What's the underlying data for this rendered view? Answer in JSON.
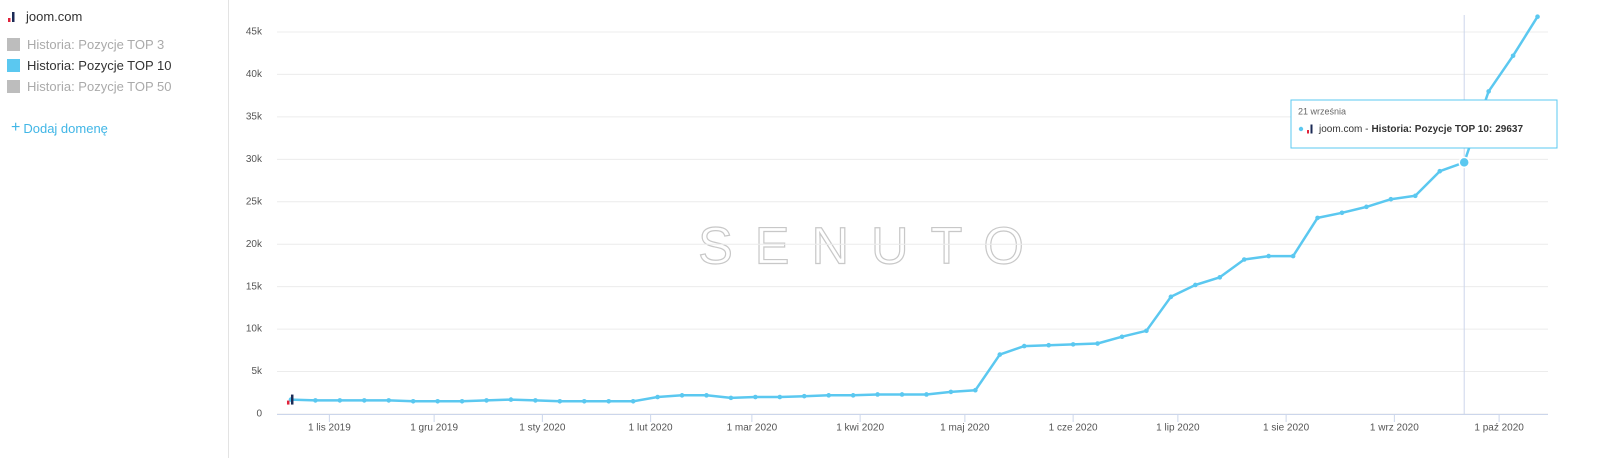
{
  "sidebar": {
    "domain": "joom.com",
    "legend": [
      {
        "name": "Historia: Pozycje TOP 3",
        "color": "#bdbdbd",
        "active": false
      },
      {
        "name": "Historia: Pozycje TOP 10",
        "color": "#5bc8f0",
        "active": true
      },
      {
        "name": "Historia: Pozycje TOP 50",
        "color": "#bdbdbd",
        "active": false
      }
    ],
    "add_domain": "Dodaj domenę"
  },
  "chart_data": {
    "type": "line",
    "watermark": "SENUTO",
    "x": [
      "2019-10-21",
      "2019-10-28",
      "2019-11-04",
      "2019-11-11",
      "2019-11-18",
      "2019-11-25",
      "2019-12-02",
      "2019-12-09",
      "2019-12-16",
      "2019-12-23",
      "2019-12-30",
      "2020-01-06",
      "2020-01-13",
      "2020-01-20",
      "2020-01-27",
      "2020-02-03",
      "2020-02-10",
      "2020-02-17",
      "2020-02-24",
      "2020-03-02",
      "2020-03-09",
      "2020-03-16",
      "2020-03-23",
      "2020-03-30",
      "2020-04-06",
      "2020-04-13",
      "2020-04-20",
      "2020-04-27",
      "2020-05-04",
      "2020-05-11",
      "2020-05-18",
      "2020-05-25",
      "2020-06-01",
      "2020-06-08",
      "2020-06-15",
      "2020-06-22",
      "2020-06-29",
      "2020-07-06",
      "2020-07-13",
      "2020-07-20",
      "2020-07-27",
      "2020-08-03",
      "2020-08-10",
      "2020-08-17",
      "2020-08-24",
      "2020-08-31",
      "2020-09-07",
      "2020-09-14",
      "2020-09-21",
      "2020-09-28",
      "2020-10-05",
      "2020-10-12"
    ],
    "series": [
      {
        "name": "Historia: Pozycje TOP 10",
        "color": "#5bc8f0",
        "values": [
          1700,
          1600,
          1600,
          1600,
          1600,
          1500,
          1500,
          1500,
          1600,
          1700,
          1600,
          1500,
          1500,
          1500,
          1500,
          2000,
          2200,
          2200,
          1900,
          2000,
          2000,
          2100,
          2200,
          2200,
          2300,
          2300,
          2300,
          2600,
          2800,
          7000,
          8000,
          8100,
          8200,
          8300,
          9100,
          9800,
          13800,
          15200,
          16100,
          18200,
          18600,
          18600,
          23100,
          23700,
          24400,
          25300,
          25700,
          28600,
          29637,
          38000,
          42200,
          46800
        ]
      }
    ],
    "xlim": [
      "2019-10-17",
      "2020-10-15"
    ],
    "xticks": [
      {
        "value": "2019-11-01",
        "label": "1 lis 2019"
      },
      {
        "value": "2019-12-01",
        "label": "1 gru 2019"
      },
      {
        "value": "2020-01-01",
        "label": "1 sty 2020"
      },
      {
        "value": "2020-02-01",
        "label": "1 lut 2020"
      },
      {
        "value": "2020-03-01",
        "label": "1 mar 2020"
      },
      {
        "value": "2020-04-01",
        "label": "1 kwi 2020"
      },
      {
        "value": "2020-05-01",
        "label": "1 maj 2020"
      },
      {
        "value": "2020-06-01",
        "label": "1 cze 2020"
      },
      {
        "value": "2020-07-01",
        "label": "1 lip 2020"
      },
      {
        "value": "2020-08-01",
        "label": "1 sie 2020"
      },
      {
        "value": "2020-09-01",
        "label": "1 wrz 2020"
      },
      {
        "value": "2020-10-01",
        "label": "1 paź 2020"
      }
    ],
    "ylim": [
      0,
      47000
    ],
    "yticks": [
      0,
      {
        "value": 5000,
        "label": "5k"
      },
      {
        "value": 10000,
        "label": "10k"
      },
      {
        "value": 15000,
        "label": "15k"
      },
      {
        "value": 20000,
        "label": "20k"
      },
      {
        "value": 25000,
        "label": "25k"
      },
      {
        "value": 30000,
        "label": "30k"
      },
      {
        "value": 35000,
        "label": "35k"
      },
      {
        "value": 40000,
        "label": "40k"
      },
      {
        "value": 45000,
        "label": "45k"
      }
    ],
    "grid": true,
    "tooltip": {
      "x": "2020-09-21",
      "title": "21 września",
      "domain": "joom.com -",
      "label": "Historia: Pozycje TOP 10:"
    }
  }
}
